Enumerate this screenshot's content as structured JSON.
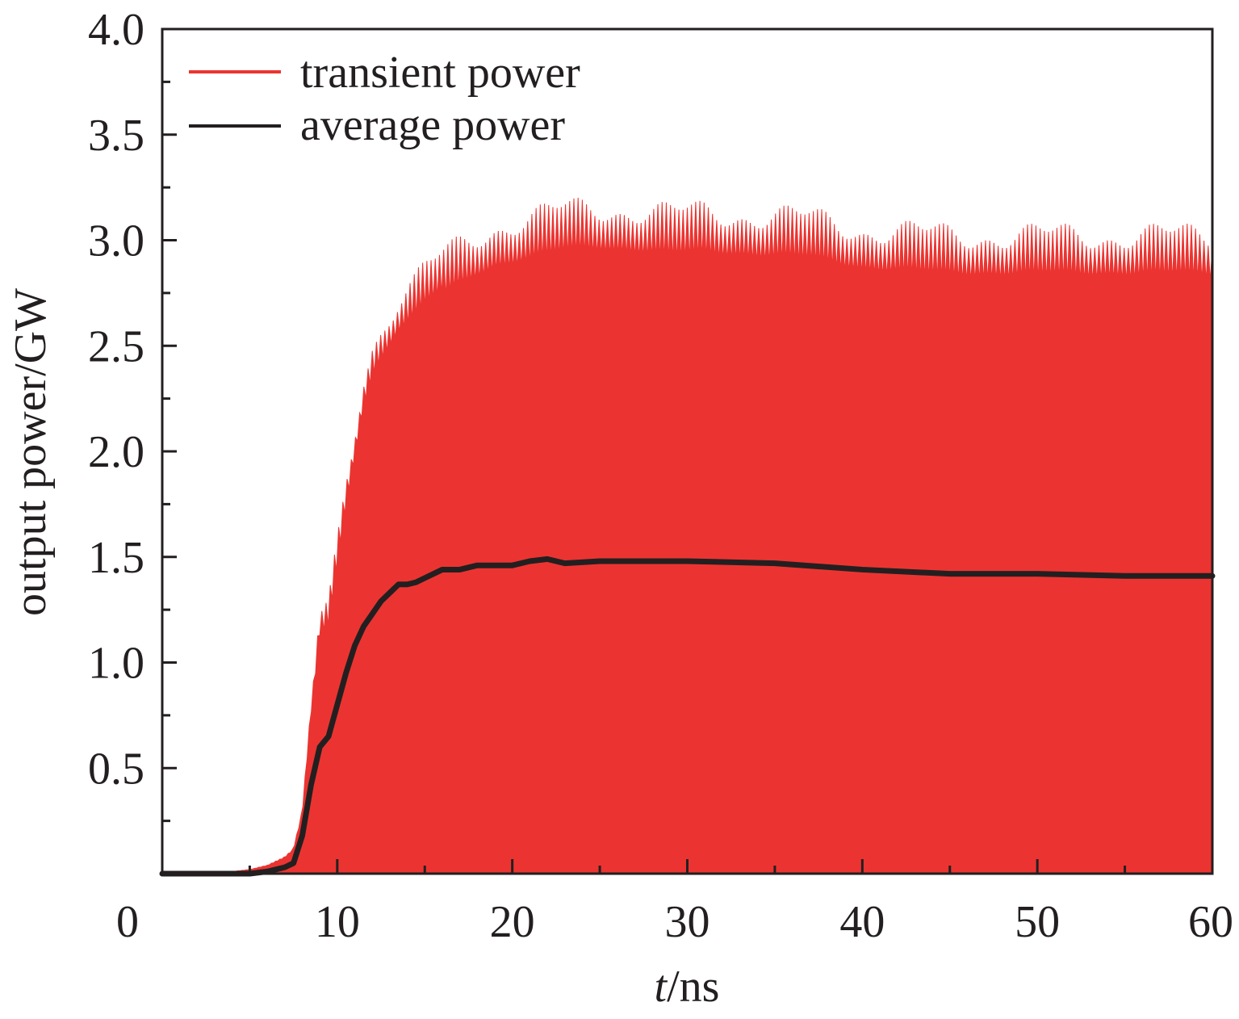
{
  "chart_data": {
    "type": "area",
    "xlabel_italic": "t",
    "xlabel_rest": "/ns",
    "ylabel": "output power/GW",
    "xlim": [
      0,
      60
    ],
    "ylim": [
      0,
      4.0
    ],
    "x_ticks": [
      "0",
      "10",
      "20",
      "30",
      "40",
      "50",
      "60"
    ],
    "y_ticks": [
      "0.5",
      "1.0",
      "1.5",
      "2.0",
      "2.5",
      "3.0",
      "3.5",
      "4.0"
    ],
    "legend_position": "top-left",
    "grid": false,
    "series": [
      {
        "name": "transient power",
        "color": "#eb3431",
        "style": "rapidly oscillating signal filled from 0 to upper envelope",
        "envelope_x": [
          0,
          4,
          5,
          6,
          7,
          7.5,
          8,
          8.5,
          9,
          9.5,
          10,
          10.5,
          11,
          11.5,
          12,
          12.5,
          13,
          13.5,
          14,
          14.5,
          15,
          16,
          17,
          18,
          19,
          20,
          21,
          22,
          23,
          25,
          27,
          29,
          31,
          33,
          35,
          37,
          40,
          45,
          50,
          55,
          60
        ],
        "envelope_y": [
          0,
          0.01,
          0.02,
          0.04,
          0.08,
          0.12,
          0.3,
          0.8,
          1.2,
          1.25,
          1.55,
          1.85,
          2.1,
          2.35,
          2.5,
          2.58,
          2.65,
          2.72,
          2.76,
          2.8,
          2.85,
          2.92,
          2.97,
          3.02,
          3.06,
          3.08,
          3.1,
          3.12,
          3.14,
          3.15,
          3.14,
          3.12,
          3.13,
          3.12,
          3.11,
          3.1,
          3.05,
          3.02,
          3.02,
          3.02,
          3.02
        ]
      },
      {
        "name": "average power",
        "color": "#231f20",
        "x": [
          0,
          5,
          6,
          7,
          7.5,
          8,
          8.5,
          9,
          9.5,
          10,
          10.5,
          11,
          11.5,
          12,
          12.5,
          13,
          13.5,
          14,
          14.5,
          15,
          16,
          17,
          18,
          19,
          20,
          21,
          22,
          23,
          25,
          27,
          30,
          35,
          40,
          45,
          50,
          55,
          60
        ],
        "y": [
          0,
          0,
          0.01,
          0.03,
          0.05,
          0.18,
          0.42,
          0.6,
          0.65,
          0.8,
          0.95,
          1.08,
          1.17,
          1.23,
          1.29,
          1.33,
          1.37,
          1.37,
          1.38,
          1.4,
          1.44,
          1.44,
          1.46,
          1.46,
          1.46,
          1.48,
          1.49,
          1.47,
          1.48,
          1.48,
          1.48,
          1.47,
          1.44,
          1.42,
          1.42,
          1.41,
          1.41
        ]
      }
    ]
  }
}
